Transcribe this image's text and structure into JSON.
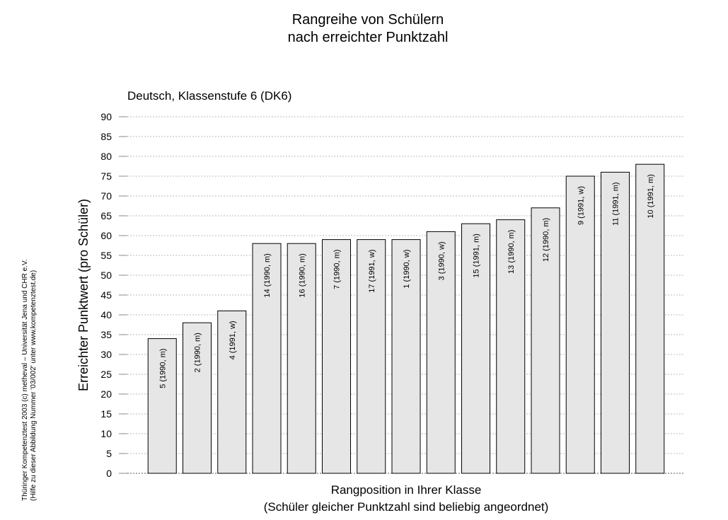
{
  "chart_data": {
    "type": "bar",
    "title": [
      "Rangreihe von Schülern",
      "nach erreichter Punktzahl"
    ],
    "subtitle": "Deutsch, Klassenstufe 6 (DK6)",
    "y_label": "Erreichter Punktwert (pro Schüler)",
    "x_label": [
      "Rangposition in Ihrer Klasse",
      "(Schüler gleicher Punktzahl sind beliebig angeordnet)"
    ],
    "side_note": [
      "Thüringer Kompetenztest 2003 (c) metheval – Universität Jena und CHR e.V.",
      "(Hilfe zu dieser Abbildung Nummer '03/002' unter www.kompetenztest.de)"
    ],
    "categories": [
      "5 (1990, m)",
      "2 (1990, m)",
      "4 (1991, w)",
      "14 (1990, m)",
      "16 (1990, m)",
      "7 (1990, m)",
      "17 (1991, w)",
      "1 (1990, w)",
      "3 (1990, w)",
      "15 (1991, m)",
      "13 (1990, m)",
      "12 (1990, m)",
      "9 (1991, w)",
      "11 (1991, m)",
      "10 (1991, m)"
    ],
    "values": [
      34,
      38,
      41,
      58,
      58,
      59,
      59,
      59,
      61,
      63,
      64,
      67,
      75,
      76,
      78
    ],
    "color": "#e6e6e6",
    "ylim": [
      0,
      90
    ],
    "yticks": [
      0,
      5,
      10,
      15,
      20,
      25,
      30,
      35,
      40,
      45,
      50,
      55,
      60,
      65,
      70,
      75,
      80,
      85,
      90
    ],
    "grid": true
  }
}
